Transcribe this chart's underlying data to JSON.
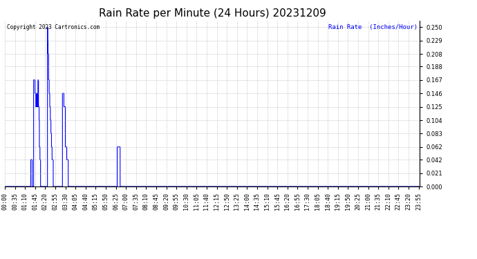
{
  "title": "Rain Rate per Minute (24 Hours) 20231209",
  "copyright_text": "Copyright 2023 Cartronics.com",
  "legend_label": "Rain Rate  (Inches/Hour)",
  "background_color": "#ffffff",
  "plot_bg_color": "#ffffff",
  "line_color": "#0000ff",
  "grid_color": "#b0b0b0",
  "yticks": [
    0.0,
    0.021,
    0.042,
    0.062,
    0.083,
    0.104,
    0.125,
    0.146,
    0.167,
    0.188,
    0.208,
    0.229,
    0.25
  ],
  "ylim": [
    0.0,
    0.26
  ],
  "total_minutes": 1440,
  "data_points": [
    [
      0,
      0.0
    ],
    [
      85,
      0.0
    ],
    [
      90,
      0.042
    ],
    [
      95,
      0.0
    ],
    [
      100,
      0.167
    ],
    [
      103,
      0.167
    ],
    [
      105,
      0.146
    ],
    [
      107,
      0.125
    ],
    [
      108,
      0.146
    ],
    [
      110,
      0.125
    ],
    [
      112,
      0.146
    ],
    [
      114,
      0.125
    ],
    [
      115,
      0.167
    ],
    [
      117,
      0.125
    ],
    [
      119,
      0.104
    ],
    [
      120,
      0.062
    ],
    [
      122,
      0.042
    ],
    [
      124,
      0.0
    ],
    [
      130,
      0.0
    ],
    [
      148,
      0.25
    ],
    [
      149,
      0.229
    ],
    [
      150,
      0.208
    ],
    [
      152,
      0.167
    ],
    [
      154,
      0.146
    ],
    [
      156,
      0.125
    ],
    [
      158,
      0.104
    ],
    [
      160,
      0.083
    ],
    [
      162,
      0.062
    ],
    [
      164,
      0.042
    ],
    [
      168,
      0.0
    ],
    [
      170,
      0.0
    ],
    [
      200,
      0.146
    ],
    [
      205,
      0.125
    ],
    [
      210,
      0.062
    ],
    [
      212,
      0.062
    ],
    [
      215,
      0.042
    ],
    [
      220,
      0.0
    ],
    [
      385,
      0.0
    ],
    [
      390,
      0.062
    ],
    [
      395,
      0.062
    ],
    [
      400,
      0.0
    ],
    [
      1439,
      0.0
    ]
  ],
  "xtick_interval_minutes": 35,
  "title_fontsize": 11,
  "tick_fontsize": 6,
  "label_fontsize": 7,
  "figwidth": 6.9,
  "figheight": 3.75,
  "dpi": 100
}
